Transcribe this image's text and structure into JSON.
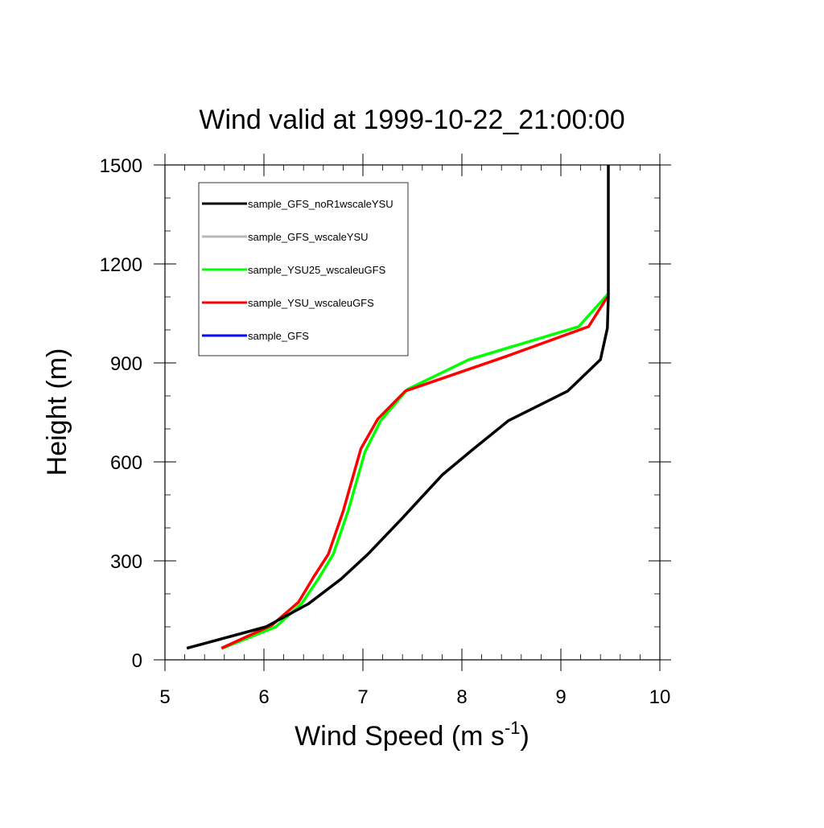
{
  "chart_data": {
    "type": "line",
    "title": "Wind valid at 1999-10-22_21:00:00",
    "xlabel": "Wind Speed (m s",
    "xlabel_sup": "-1",
    "xlabel_tail": ")",
    "ylabel": "Height (m)",
    "xlim": [
      5,
      10
    ],
    "ylim": [
      0,
      1500
    ],
    "xticks": [
      "5",
      "6",
      "7",
      "8",
      "9",
      "10"
    ],
    "yticks": [
      "0",
      "300",
      "600",
      "900",
      "1200",
      "1500"
    ],
    "grid": false,
    "legend_position": "top-left",
    "series": [
      {
        "name": "sample_GFS_noR1wscaleYSU",
        "color": "#000000",
        "x": [
          5.22,
          6.02,
          6.45,
          6.78,
          7.05,
          7.4,
          7.8,
          8.1,
          8.47,
          9.07,
          9.4,
          9.47,
          9.48,
          9.48
        ],
        "y": [
          35,
          100,
          170,
          245,
          320,
          430,
          560,
          635,
          725,
          815,
          910,
          1005,
          1100,
          1500
        ]
      },
      {
        "name": "sample_GFS_wscaleYSU",
        "color": "#b8b8b8",
        "x": [],
        "y": []
      },
      {
        "name": "sample_YSU25_wscaleuGFS",
        "color": "#00ff00",
        "x": [
          5.58,
          6.12,
          6.38,
          6.55,
          6.7,
          6.85,
          7.02,
          7.18,
          7.45,
          8.07,
          9.18,
          9.48
        ],
        "y": [
          35,
          100,
          170,
          245,
          320,
          450,
          630,
          725,
          820,
          910,
          1010,
          1110
        ]
      },
      {
        "name": "sample_YSU_wscaleuGFS",
        "color": "#ff0000",
        "x": [
          5.57,
          6.08,
          6.35,
          6.5,
          6.65,
          6.8,
          6.98,
          7.15,
          7.43,
          8.45,
          9.28,
          9.47
        ],
        "y": [
          35,
          105,
          175,
          250,
          320,
          450,
          640,
          730,
          815,
          920,
          1010,
          1100
        ]
      },
      {
        "name": "sample_GFS",
        "color": "#0000ff",
        "x": [],
        "y": []
      }
    ]
  }
}
